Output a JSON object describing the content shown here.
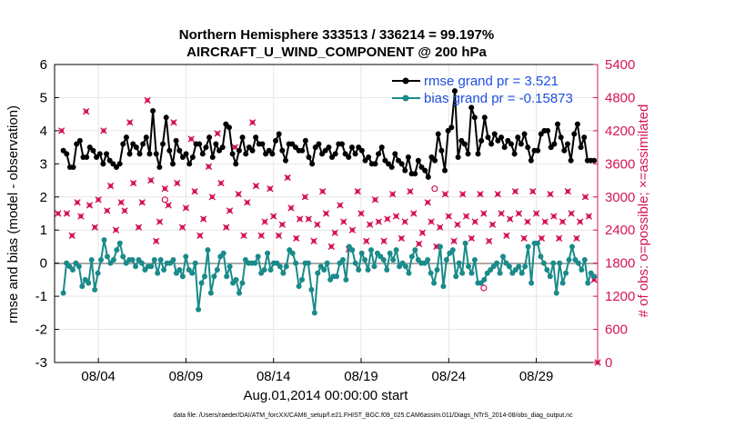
{
  "chart_data": {
    "type": "line",
    "title_line1": "Northern Hemisphere 333513 / 336214 = 99.197%",
    "title_line2": "AIRCRAFT_U_WIND_COMPONENT @ 200 hPa",
    "xlabel": "Aug.01,2014 00:00:00 start",
    "ylabel_left": "rmse and bias (model - observation)",
    "ylabel_right": "# of obs: o=possible; ×=assimilated",
    "x_tick_labels": [
      "08/04",
      "08/09",
      "08/14",
      "08/19",
      "08/24",
      "08/29"
    ],
    "x_tick_days": [
      4,
      9,
      14,
      19,
      24,
      29
    ],
    "xlim": [
      1.5,
      32.5
    ],
    "ylim_left": [
      -3,
      6
    ],
    "yticks_left": [
      -3,
      -2,
      -1,
      0,
      1,
      2,
      3,
      4,
      5,
      6
    ],
    "ylim_right": [
      0,
      5400
    ],
    "yticks_right": [
      0,
      600,
      1200,
      1800,
      2400,
      3000,
      3600,
      4200,
      4800,
      5400
    ],
    "grid": true,
    "legend_position": "top-right",
    "legend": [
      {
        "label": "rmse grand pr = 3.521",
        "color": "#000000"
      },
      {
        "label": "bias grand pr = -0.15873",
        "color": "#1a8a8a"
      }
    ],
    "colors": {
      "rmse": "#000000",
      "bias": "#1a8a8a",
      "obs": "#d4145a",
      "zero_line": "#aaaaaa"
    },
    "rmse": [
      3.4,
      3.3,
      2.9,
      2.9,
      3.6,
      3.7,
      3.2,
      3.2,
      3.5,
      3.4,
      3.2,
      3.3,
      3.0,
      3.3,
      3.1,
      3.0,
      2.9,
      3.0,
      3.6,
      3.8,
      3.3,
      3.6,
      3.5,
      3.3,
      3.6,
      3.8,
      3.3,
      4.6,
      3.3,
      2.9,
      3.6,
      4.4,
      3.4,
      3.0,
      3.7,
      3.4,
      3.2,
      3.3,
      3.0,
      3.2,
      3.6,
      3.6,
      3.3,
      3.5,
      3.8,
      3.2,
      3.6,
      3.4,
      3.5,
      4.2,
      4.1,
      3.3,
      3.0,
      3.4,
      3.8,
      3.3,
      3.5,
      3.4,
      3.8,
      3.6,
      3.6,
      3.3,
      3.4,
      3.3,
      3.7,
      3.9,
      3.4,
      3.1,
      3.6,
      3.6,
      3.5,
      3.4,
      3.4,
      3.7,
      3.2,
      3.0,
      3.5,
      3.6,
      3.3,
      3.4,
      3.5,
      3.2,
      3.3,
      3.6,
      3.6,
      3.3,
      3.2,
      3.5,
      3.3,
      3.5,
      3.4,
      3.1,
      3.2,
      3.0,
      3.0,
      3.3,
      3.5,
      3.1,
      3.0,
      2.9,
      3.3,
      3.1,
      3.0,
      2.8,
      3.2,
      2.7,
      2.7,
      3.1,
      2.9,
      2.8,
      2.6,
      3.2,
      3.1,
      3.9,
      3.4,
      2.8,
      4.0,
      4.1,
      5.2,
      3.2,
      3.7,
      3.6,
      3.3,
      4.7,
      4.4,
      3.3,
      3.7,
      4.4,
      3.8,
      3.6,
      3.9,
      3.7,
      3.8,
      3.5,
      3.7,
      3.6,
      3.3,
      3.8,
      3.6,
      3.9,
      3.5,
      3.1,
      3.4,
      3.4,
      3.9,
      4.0,
      4.0,
      3.5,
      3.6,
      4.2,
      3.8,
      3.4,
      3.6,
      3.1,
      3.9,
      4.2,
      3.5,
      3.8,
      3.1,
      3.1,
      3.1
    ],
    "bias": [
      -0.9,
      0.0,
      -0.1,
      -0.2,
      0.0,
      -0.1,
      -0.7,
      -0.5,
      -0.6,
      0.1,
      -0.8,
      -0.3,
      0.1,
      0.7,
      0.2,
      0.0,
      0.1,
      0.4,
      0.6,
      0.2,
      0.0,
      0.1,
      0.1,
      -0.1,
      0.1,
      0.0,
      -0.2,
      -0.1,
      -0.1,
      0.1,
      -0.3,
      0.1,
      -0.2,
      0.0,
      0.0,
      0.1,
      -0.3,
      -0.2,
      -0.4,
      0.2,
      -0.2,
      -0.3,
      0.0,
      -1.4,
      -0.6,
      -0.4,
      0.4,
      -0.9,
      -0.4,
      -0.2,
      0.2,
      0.3,
      -0.4,
      -0.1,
      -0.6,
      -0.5,
      -0.9,
      -0.6,
      0.1,
      0.0,
      0.0,
      0.0,
      0.2,
      -0.3,
      -0.2,
      0.3,
      -0.2,
      0.0,
      0.0,
      -0.1,
      -0.3,
      -0.1,
      0.4,
      0.3,
      0.0,
      -0.7,
      -0.5,
      0.0,
      0.0,
      -0.8,
      -1.5,
      -0.3,
      -0.1,
      -0.2,
      0.0,
      -0.5,
      -0.4,
      -0.4,
      0.0,
      0.1,
      -0.5,
      0.5,
      0.4,
      0.0,
      -0.2,
      0.3,
      0.1,
      -0.2,
      0.4,
      -0.1,
      0.3,
      0.2,
      0.1,
      -0.2,
      0.3,
      0.1,
      0.4,
      -0.1,
      0.0,
      -0.1,
      -0.3,
      0.2,
      0.4,
      0.1,
      0.0,
      0.0,
      0.1,
      -0.3,
      -0.6,
      -0.2,
      0.5,
      -0.7,
      0.1,
      0.3,
      0.4,
      -0.4,
      0.0,
      -0.3,
      0.6,
      -0.1,
      -0.3,
      0.1,
      -0.6,
      -0.6,
      -0.5,
      -0.3,
      -0.2,
      -0.1,
      0.0,
      -0.3,
      0.2,
      0.0,
      -0.1,
      -0.3,
      -0.2,
      -0.1,
      -0.3,
      -0.1,
      0.5,
      -0.6,
      0.6,
      0.6,
      0.2,
      0.0,
      -0.2,
      -0.4,
      0.0,
      -0.9,
      0.0,
      -0.6,
      -0.3,
      0.1,
      0.5,
      0.1,
      0.0,
      -0.2,
      0.1,
      -0.6,
      -0.3,
      -0.4
    ],
    "obs_assimilated": [
      [
        1.7,
        2700
      ],
      [
        1.9,
        4200
      ],
      [
        2.2,
        2700
      ],
      [
        2.5,
        2300
      ],
      [
        2.8,
        2900
      ],
      [
        3.0,
        2650
      ],
      [
        3.3,
        4550
      ],
      [
        3.5,
        2850
      ],
      [
        3.8,
        2450
      ],
      [
        4.0,
        2950
      ],
      [
        4.3,
        4200
      ],
      [
        4.5,
        2750
      ],
      [
        4.7,
        3200
      ],
      [
        5.0,
        2400
      ],
      [
        5.3,
        2900
      ],
      [
        5.5,
        2750
      ],
      [
        5.8,
        4350
      ],
      [
        6.0,
        3250
      ],
      [
        6.3,
        2450
      ],
      [
        6.5,
        2900
      ],
      [
        6.8,
        4750
      ],
      [
        7.0,
        3300
      ],
      [
        7.3,
        2200
      ],
      [
        7.5,
        2550
      ],
      [
        7.8,
        3150
      ],
      [
        8.0,
        2850
      ],
      [
        8.3,
        4350
      ],
      [
        8.5,
        3250
      ],
      [
        8.8,
        2450
      ],
      [
        9.0,
        2800
      ],
      [
        9.3,
        4050
      ],
      [
        9.5,
        3100
      ],
      [
        9.8,
        2300
      ],
      [
        10.0,
        2600
      ],
      [
        10.3,
        3550
      ],
      [
        10.5,
        3000
      ],
      [
        10.8,
        4150
      ],
      [
        11.0,
        3250
      ],
      [
        11.3,
        2450
      ],
      [
        11.5,
        2750
      ],
      [
        11.8,
        3900
      ],
      [
        12.0,
        3050
      ],
      [
        12.3,
        2300
      ],
      [
        12.5,
        2900
      ],
      [
        12.8,
        4350
      ],
      [
        13.0,
        3200
      ],
      [
        13.3,
        2300
      ],
      [
        13.5,
        2550
      ],
      [
        13.8,
        3150
      ],
      [
        14.0,
        2650
      ],
      [
        14.3,
        2300
      ],
      [
        14.5,
        2500
      ],
      [
        14.8,
        3350
      ],
      [
        15.0,
        2800
      ],
      [
        15.3,
        2250
      ],
      [
        15.5,
        2600
      ],
      [
        15.8,
        3000
      ],
      [
        16.0,
        2600
      ],
      [
        16.3,
        2200
      ],
      [
        16.5,
        2500
      ],
      [
        16.8,
        3100
      ],
      [
        17.0,
        2700
      ],
      [
        17.3,
        2100
      ],
      [
        17.5,
        2350
      ],
      [
        17.8,
        2850
      ],
      [
        18.0,
        2550
      ],
      [
        18.3,
        2050
      ],
      [
        18.5,
        2400
      ],
      [
        18.8,
        3100
      ],
      [
        19.0,
        2700
      ],
      [
        19.3,
        2200
      ],
      [
        19.5,
        2500
      ],
      [
        19.8,
        2950
      ],
      [
        20.0,
        2550
      ],
      [
        20.3,
        2200
      ],
      [
        20.5,
        2600
      ],
      [
        20.8,
        3050
      ],
      [
        21.0,
        2650
      ],
      [
        21.3,
        2250
      ],
      [
        21.5,
        2550
      ],
      [
        21.8,
        3100
      ],
      [
        22.0,
        2700
      ],
      [
        22.3,
        2150
      ],
      [
        22.5,
        2350
      ],
      [
        22.8,
        2900
      ],
      [
        23.0,
        2550
      ],
      [
        23.3,
        2100
      ],
      [
        23.5,
        2450
      ],
      [
        23.8,
        3050
      ],
      [
        24.0,
        2650
      ],
      [
        24.3,
        2200
      ],
      [
        24.5,
        2500
      ],
      [
        24.8,
        3050
      ],
      [
        25.0,
        2650
      ],
      [
        25.3,
        2250
      ],
      [
        25.5,
        2550
      ],
      [
        25.8,
        3050
      ],
      [
        26.0,
        2700
      ],
      [
        26.3,
        2200
      ],
      [
        26.5,
        2500
      ],
      [
        26.8,
        3050
      ],
      [
        27.0,
        2700
      ],
      [
        27.3,
        2300
      ],
      [
        27.5,
        2600
      ],
      [
        27.8,
        3100
      ],
      [
        28.0,
        2700
      ],
      [
        28.3,
        2250
      ],
      [
        28.5,
        2550
      ],
      [
        28.8,
        3100
      ],
      [
        29.0,
        2700
      ],
      [
        29.3,
        2250
      ],
      [
        29.5,
        2550
      ],
      [
        29.8,
        3050
      ],
      [
        30.0,
        2650
      ],
      [
        30.3,
        2250
      ],
      [
        30.5,
        2550
      ],
      [
        30.8,
        3100
      ],
      [
        31.0,
        2700
      ],
      [
        31.3,
        2250
      ],
      [
        31.5,
        2550
      ],
      [
        31.8,
        3000
      ],
      [
        32.0,
        2650
      ],
      [
        32.3,
        1500
      ],
      [
        32.5,
        0
      ]
    ],
    "obs_possible": [
      [
        7.8,
        2950
      ],
      [
        23.2,
        3150
      ],
      [
        26.0,
        1350
      ]
    ],
    "footer": "data file: /Users/raeder/DAI/ATM_forcXX/CAM6_setup/f.e21.FHIST_BGC.f09_025.CAM6assim.011/Diags_NTrS_2014-08/obs_diag_output.nc"
  }
}
